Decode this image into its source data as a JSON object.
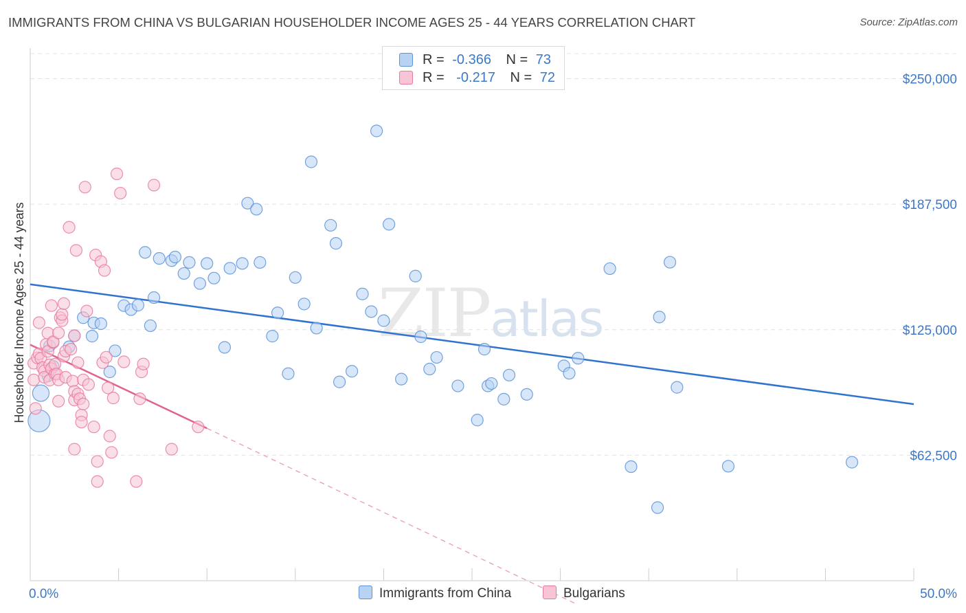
{
  "header": {
    "title": "IMMIGRANTS FROM CHINA VS BULGARIAN HOUSEHOLDER INCOME AGES 25 - 44 YEARS CORRELATION CHART",
    "source": "Source: ZipAtlas.com"
  },
  "watermark": {
    "zip": "ZIP",
    "atlas": "atlas"
  },
  "legend": {
    "r_label": "R =",
    "n_label": "N =",
    "series": [
      {
        "r": "-0.366",
        "n": "73",
        "color": "#5b93d8",
        "fill": "#b8d2f4"
      },
      {
        "r": "-0.217",
        "n": "72",
        "color": "#e87a9f",
        "fill": "#f7c4d5"
      }
    ]
  },
  "bottom_legend": {
    "china": "Immigrants from China",
    "bulgarians": "Bulgarians"
  },
  "chart_data": {
    "type": "scatter",
    "title": "IMMIGRANTS FROM CHINA VS BULGARIAN HOUSEHOLDER INCOME AGES 25 - 44 YEARS CORRELATION CHART",
    "ylabel": "Householder Income Ages 25 - 44 years",
    "xlabel": "",
    "x_tick_labels": [
      "0.0%",
      "50.0%"
    ],
    "y_tick_labels": [
      "$62,500",
      "$125,000",
      "$187,500",
      "$250,000"
    ],
    "y_ticks": [
      62500,
      125000,
      187500,
      250000
    ],
    "xlim": [
      0,
      50
    ],
    "ylim": [
      0,
      262500
    ],
    "grid": true,
    "legend_position": "top-center",
    "series": [
      {
        "name": "Immigrants from China",
        "color": "#5b93d8",
        "fill": "#b8d2f4",
        "trend": {
          "x": [
            0,
            50
          ],
          "y": [
            147600,
            87900
          ]
        },
        "points": [
          [
            0.5,
            79600
          ],
          [
            0.6,
            93400
          ],
          [
            1.0,
            102000
          ],
          [
            1.1,
            117000
          ],
          [
            1.3,
            106700
          ],
          [
            2.2,
            116500
          ],
          [
            2.5,
            122000
          ],
          [
            3.0,
            131000
          ],
          [
            3.5,
            121800
          ],
          [
            3.6,
            128400
          ],
          [
            4.0,
            128000
          ],
          [
            4.5,
            104000
          ],
          [
            4.8,
            114500
          ],
          [
            5.3,
            137000
          ],
          [
            5.7,
            135000
          ],
          [
            6.1,
            137200
          ],
          [
            6.5,
            163500
          ],
          [
            6.8,
            127000
          ],
          [
            7.0,
            141000
          ],
          [
            7.3,
            160500
          ],
          [
            8.0,
            159400
          ],
          [
            8.2,
            161200
          ],
          [
            8.7,
            153000
          ],
          [
            9.0,
            158500
          ],
          [
            9.6,
            148000
          ],
          [
            10.0,
            158000
          ],
          [
            10.4,
            150700
          ],
          [
            11.0,
            116200
          ],
          [
            11.3,
            155600
          ],
          [
            12.0,
            158000
          ],
          [
            12.3,
            188000
          ],
          [
            12.8,
            185000
          ],
          [
            13.0,
            158500
          ],
          [
            13.7,
            121800
          ],
          [
            14.0,
            133400
          ],
          [
            14.6,
            103100
          ],
          [
            15.0,
            151000
          ],
          [
            15.5,
            137800
          ],
          [
            15.9,
            208600
          ],
          [
            16.2,
            125800
          ],
          [
            17.0,
            177000
          ],
          [
            17.3,
            168000
          ],
          [
            17.5,
            99000
          ],
          [
            18.2,
            104300
          ],
          [
            18.8,
            142800
          ],
          [
            19.3,
            134000
          ],
          [
            19.6,
            224000
          ],
          [
            20.0,
            129500
          ],
          [
            20.3,
            177500
          ],
          [
            21.0,
            100400
          ],
          [
            21.8,
            151700
          ],
          [
            22.1,
            121500
          ],
          [
            22.6,
            105400
          ],
          [
            23.0,
            111200
          ],
          [
            24.2,
            97000
          ],
          [
            25.3,
            80000
          ],
          [
            25.7,
            115300
          ],
          [
            25.9,
            97000
          ],
          [
            26.1,
            98200
          ],
          [
            26.8,
            90400
          ],
          [
            27.1,
            102400
          ],
          [
            28.1,
            92800
          ],
          [
            30.2,
            107000
          ],
          [
            30.5,
            103300
          ],
          [
            31.0,
            110800
          ],
          [
            32.8,
            155400
          ],
          [
            34.0,
            56800
          ],
          [
            35.5,
            36400
          ],
          [
            35.6,
            131300
          ],
          [
            36.2,
            158600
          ],
          [
            36.6,
            96300
          ],
          [
            39.5,
            57000
          ],
          [
            46.5,
            59000
          ]
        ]
      },
      {
        "name": "Bulgarians",
        "color": "#e87a9f",
        "fill": "#f7c4d5",
        "trend": {
          "x": [
            0,
            10
          ],
          "y": [
            117500,
            75900
          ]
        },
        "trend_extension": {
          "x": [
            10,
            31
          ],
          "y": [
            75900,
            -12000
          ]
        },
        "points": [
          [
            0.2,
            108300
          ],
          [
            0.2,
            100000
          ],
          [
            0.3,
            85800
          ],
          [
            0.4,
            111000
          ],
          [
            0.5,
            113000
          ],
          [
            0.5,
            128500
          ],
          [
            0.6,
            110800
          ],
          [
            0.7,
            106100
          ],
          [
            0.8,
            104500
          ],
          [
            0.8,
            101300
          ],
          [
            0.9,
            117700
          ],
          [
            1.0,
            114200
          ],
          [
            1.0,
            123300
          ],
          [
            1.1,
            99900
          ],
          [
            1.1,
            107500
          ],
          [
            1.2,
            137000
          ],
          [
            1.2,
            105600
          ],
          [
            1.3,
            118600
          ],
          [
            1.3,
            119000
          ],
          [
            1.4,
            103000
          ],
          [
            1.4,
            107800
          ],
          [
            1.5,
            102900
          ],
          [
            1.6,
            123400
          ],
          [
            1.6,
            100000
          ],
          [
            1.6,
            89400
          ],
          [
            1.7,
            131000
          ],
          [
            1.8,
            129500
          ],
          [
            1.8,
            132600
          ],
          [
            1.9,
            138000
          ],
          [
            1.9,
            111800
          ],
          [
            2.0,
            114300
          ],
          [
            2.0,
            101300
          ],
          [
            2.2,
            176000
          ],
          [
            2.3,
            115300
          ],
          [
            2.4,
            99400
          ],
          [
            2.5,
            94300
          ],
          [
            2.5,
            122000
          ],
          [
            2.5,
            90000
          ],
          [
            2.5,
            65500
          ],
          [
            2.6,
            164500
          ],
          [
            2.7,
            108600
          ],
          [
            2.7,
            93000
          ],
          [
            2.8,
            90600
          ],
          [
            2.9,
            82500
          ],
          [
            2.9,
            79000
          ],
          [
            3.0,
            100000
          ],
          [
            3.0,
            88000
          ],
          [
            3.1,
            196000
          ],
          [
            3.2,
            134300
          ],
          [
            3.3,
            97700
          ],
          [
            3.6,
            76600
          ],
          [
            3.7,
            162200
          ],
          [
            3.8,
            49400
          ],
          [
            3.8,
            59400
          ],
          [
            4.0,
            158900
          ],
          [
            4.1,
            108600
          ],
          [
            4.2,
            154500
          ],
          [
            4.3,
            111300
          ],
          [
            4.4,
            96000
          ],
          [
            4.5,
            72000
          ],
          [
            4.6,
            63900
          ],
          [
            4.7,
            91000
          ],
          [
            4.9,
            202600
          ],
          [
            5.1,
            193000
          ],
          [
            5.3,
            109000
          ],
          [
            6.0,
            49400
          ],
          [
            6.2,
            90600
          ],
          [
            6.3,
            104000
          ],
          [
            6.4,
            107900
          ],
          [
            7.0,
            197000
          ],
          [
            8.0,
            65500
          ],
          [
            9.5,
            76600
          ]
        ]
      }
    ]
  }
}
